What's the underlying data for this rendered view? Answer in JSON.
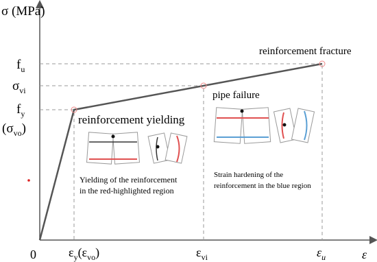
{
  "axes": {
    "y_label": "σ (MPa)",
    "x_label": "ε",
    "origin": "0"
  },
  "y_labels": [
    {
      "main": "f",
      "sub": "u"
    },
    {
      "main": "σ",
      "sub": "vi"
    },
    {
      "main": "f",
      "sub": "y"
    },
    {
      "main": "(σ",
      "sub": "vo",
      "tail": ")"
    }
  ],
  "x_labels": [
    {
      "main": "ε",
      "sub": "y",
      "mid": "(ε",
      "sub2": "vo",
      "tail": ")"
    },
    {
      "main": "ε",
      "sub": "vi"
    },
    {
      "main": "ε",
      "sub": "u"
    }
  ],
  "annotations": {
    "fracture": "reinforcement fracture",
    "pipe": "pipe failure",
    "yielding": "reinforcement yielding",
    "yield_note": [
      "Yielding of the reinforcement",
      "in the red-highlighted region"
    ],
    "hardening_note": [
      "Strain hardening of the",
      "reinforcement in the blue region"
    ]
  }
}
